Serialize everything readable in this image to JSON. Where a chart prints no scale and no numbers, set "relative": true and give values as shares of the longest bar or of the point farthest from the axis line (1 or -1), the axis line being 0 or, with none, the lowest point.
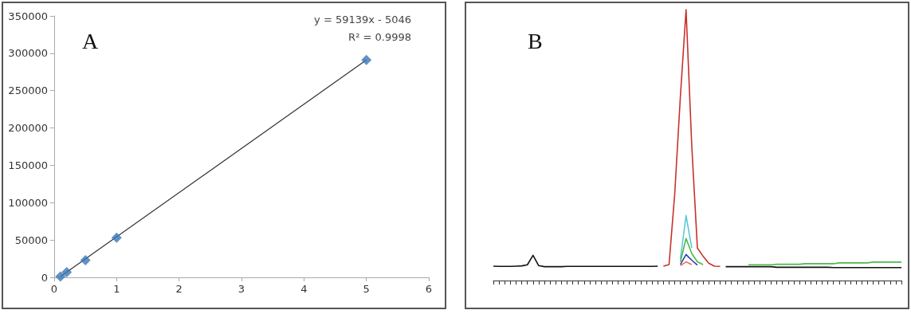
{
  "chart_data": [
    {
      "type": "scatter",
      "title": "A",
      "x": [
        0.1,
        0.2,
        0.5,
        1,
        5
      ],
      "xlim": [
        0,
        6
      ],
      "xticks": [
        0,
        1,
        2,
        3,
        4,
        5,
        6
      ],
      "ylim": [
        0,
        350000
      ],
      "yticks": [
        0,
        50000,
        100000,
        150000,
        200000,
        250000,
        300000,
        350000
      ],
      "marker": "diamond",
      "series": [
        {
          "color": "#3a75b8",
          "values": [
            1000,
            7000,
            23000,
            53000,
            291000
          ]
        },
        {
          "type": "line",
          "marker": "none",
          "color": "#333333",
          "x": [
            0.1,
            5
          ],
          "values": [
            1000,
            291000
          ]
        }
      ],
      "annotations": [
        "y = 59139x - 5046",
        "R² = 0.9998"
      ]
    },
    {
      "type": "line",
      "title": "B",
      "relative": true,
      "marker": "none",
      "categories": [
        null,
        null,
        null,
        null,
        null,
        null,
        null,
        null,
        null,
        null,
        null,
        null,
        null,
        null,
        null,
        null,
        null,
        null,
        null,
        null,
        null,
        null,
        null,
        null,
        null,
        null,
        null,
        null,
        null,
        null,
        null,
        null,
        null,
        null,
        null,
        null,
        null,
        null,
        null,
        null,
        null,
        null,
        null,
        null,
        null,
        null,
        null,
        null,
        null,
        null,
        null,
        null,
        null,
        null,
        null,
        null,
        null,
        null,
        null,
        null,
        null,
        null,
        null,
        null,
        null,
        null,
        null,
        null,
        null,
        null,
        null,
        null,
        null
      ],
      "series": [
        {
          "color": "#111111",
          "values": [
            0.053,
            0.052,
            0.052,
            0.052,
            0.053,
            0.054,
            0.058,
            0.093,
            0.055,
            0.051,
            0.051,
            0.051,
            0.051,
            0.052,
            0.052,
            0.052,
            0.052,
            0.052,
            0.052,
            0.052,
            0.052,
            0.052,
            0.052,
            0.052,
            0.052,
            0.052,
            0.052,
            0.052,
            0.052,
            0.053,
            null,
            null,
            null,
            null,
            null,
            null,
            null,
            null,
            null,
            null,
            null,
            0.051,
            0.051,
            0.051,
            0.051,
            0.051,
            0.051,
            0.051,
            0.051,
            0.051,
            0.049,
            0.049,
            0.049,
            0.049,
            0.049,
            0.049,
            0.049,
            0.049,
            0.049,
            0.049,
            0.048,
            0.048,
            0.048,
            0.048,
            0.048,
            0.048,
            0.048,
            0.048,
            0.048,
            0.048,
            0.048,
            0.048,
            0.048
          ]
        },
        {
          "color": "#5bc8d8",
          "values": [
            null,
            null,
            null,
            null,
            null,
            null,
            null,
            null,
            null,
            null,
            null,
            null,
            null,
            null,
            null,
            null,
            null,
            null,
            null,
            null,
            null,
            null,
            null,
            null,
            null,
            null,
            null,
            null,
            null,
            null,
            null,
            null,
            null,
            0.08,
            0.24,
            0.12,
            null,
            null,
            null,
            null,
            null,
            null,
            null,
            null,
            null,
            null,
            null,
            null,
            null,
            null,
            null,
            null,
            null,
            null,
            null,
            null,
            null,
            null,
            null,
            null,
            null,
            null,
            null,
            null,
            null,
            null,
            null,
            null,
            null,
            null,
            null,
            null,
            null
          ]
        },
        {
          "color": "#4cb848",
          "values": [
            null,
            null,
            null,
            null,
            null,
            null,
            null,
            null,
            null,
            null,
            null,
            null,
            null,
            null,
            null,
            null,
            null,
            null,
            null,
            null,
            null,
            null,
            null,
            null,
            null,
            null,
            null,
            null,
            null,
            null,
            null,
            null,
            null,
            0.069,
            0.155,
            0.1,
            0.069,
            0.059,
            null,
            null,
            null,
            null,
            null,
            null,
            null,
            0.058,
            0.058,
            0.058,
            0.058,
            0.058,
            0.06,
            0.06,
            0.06,
            0.06,
            0.06,
            0.062,
            0.062,
            0.062,
            0.062,
            0.062,
            0.062,
            0.065,
            0.065,
            0.065,
            0.065,
            0.065,
            0.065,
            0.068,
            0.068,
            0.068,
            0.068,
            0.068,
            0.068
          ]
        },
        {
          "color": "#2a3fb0",
          "values": [
            null,
            null,
            null,
            null,
            null,
            null,
            null,
            null,
            null,
            null,
            null,
            null,
            null,
            null,
            null,
            null,
            null,
            null,
            null,
            null,
            null,
            null,
            null,
            null,
            null,
            null,
            null,
            null,
            null,
            null,
            null,
            null,
            null,
            0.059,
            0.096,
            0.075,
            0.057,
            null,
            null,
            null,
            null,
            null,
            null,
            null,
            null,
            null,
            null,
            null,
            null,
            null,
            null,
            null,
            null,
            null,
            null,
            null,
            null,
            null,
            null,
            null,
            null,
            null,
            null,
            null,
            null,
            null,
            null,
            null,
            null,
            null,
            null,
            null,
            null
          ]
        },
        {
          "color": "#f06a6a",
          "values": [
            null,
            null,
            null,
            null,
            null,
            null,
            null,
            null,
            null,
            null,
            null,
            null,
            null,
            null,
            null,
            null,
            null,
            null,
            null,
            null,
            null,
            null,
            null,
            null,
            null,
            null,
            null,
            null,
            null,
            null,
            null,
            null,
            null,
            0.055,
            0.069,
            0.059,
            null,
            null,
            null,
            null,
            null,
            null,
            null,
            null,
            null,
            null,
            null,
            null,
            null,
            null,
            null,
            null,
            null,
            null,
            null,
            null,
            null,
            null,
            null,
            null,
            null,
            null,
            null,
            null,
            null,
            null,
            null,
            null,
            null,
            null,
            null,
            null,
            null
          ]
        },
        {
          "color": "#c8302a",
          "values": [
            null,
            null,
            null,
            null,
            null,
            null,
            null,
            null,
            null,
            null,
            null,
            null,
            null,
            null,
            null,
            null,
            null,
            null,
            null,
            null,
            null,
            null,
            null,
            null,
            null,
            null,
            null,
            null,
            null,
            null,
            0.053,
            0.059,
            0.32,
            0.68,
            1,
            0.5,
            0.12,
            0.09,
            0.064,
            0.053,
            0.052,
            null,
            null,
            null,
            null,
            null,
            null,
            null,
            null,
            null,
            null,
            null,
            null,
            null,
            null,
            null,
            null,
            null,
            null,
            null,
            null,
            null,
            null,
            null,
            null,
            null,
            null,
            null,
            null,
            null,
            null,
            null,
            null
          ]
        }
      ]
    }
  ]
}
